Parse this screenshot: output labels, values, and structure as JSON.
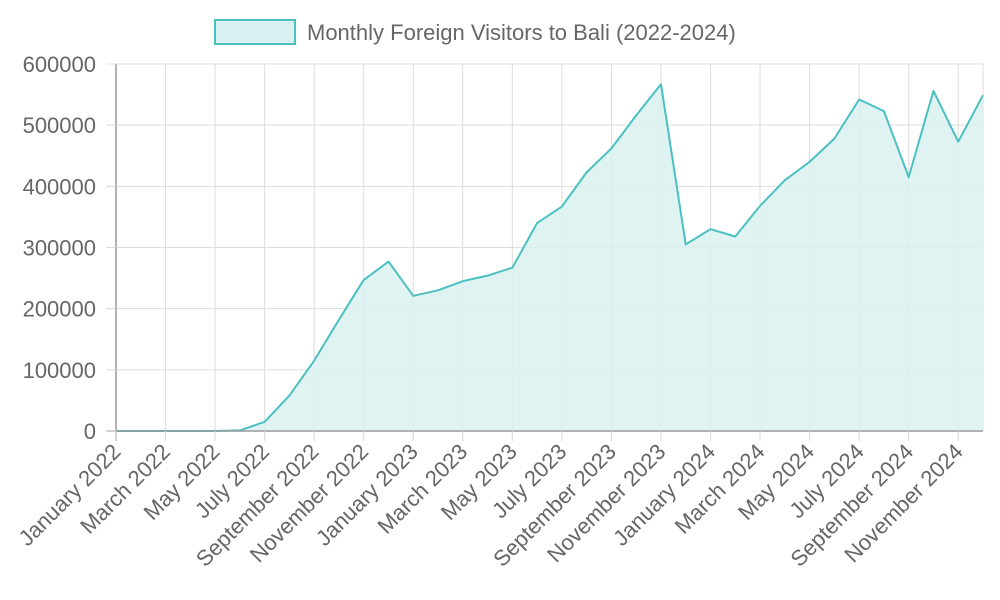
{
  "chart_data": {
    "type": "area",
    "legend": {
      "label": "Monthly Foreign Visitors to Bali (2022-2024)",
      "placement": "top-center"
    },
    "x": [
      "January 2022",
      "February 2022",
      "March 2022",
      "April 2022",
      "May 2022",
      "June 2022",
      "July 2022",
      "August 2022",
      "September 2022",
      "October 2022",
      "November 2022",
      "December 2022",
      "January 2023",
      "February 2023",
      "March 2023",
      "April 2023",
      "May 2023",
      "June 2023",
      "July 2023",
      "August 2023",
      "September 2023",
      "October 2023",
      "November 2023",
      "December 2023",
      "January 2024",
      "February 2024",
      "March 2024",
      "April 2024",
      "May 2024",
      "June 2024",
      "July 2024",
      "August 2024",
      "September 2024",
      "October 2024",
      "November 2024",
      "December 2024"
    ],
    "x_tick_labels": [
      "January 2022",
      "March 2022",
      "May 2022",
      "July 2022",
      "September 2022",
      "November 2022",
      "January 2023",
      "March 2023",
      "May 2023",
      "July 2023",
      "September 2023",
      "November 2023",
      "January 2024",
      "March 2024",
      "May 2024",
      "July 2024",
      "September 2024",
      "November 2024"
    ],
    "series": [
      {
        "name": "Monthly Foreign Visitors to Bali (2022-2024)",
        "values": [
          10,
          10,
          10,
          10,
          10,
          1000,
          15000,
          58000,
          115000,
          182000,
          247000,
          277000,
          221000,
          230000,
          245000,
          254000,
          267000,
          340000,
          367000,
          423000,
          462000,
          516000,
          567000,
          305000,
          330000,
          318000,
          368000,
          410000,
          440000,
          478000,
          542000,
          523000,
          415000,
          556000,
          473000,
          549000
        ]
      }
    ],
    "y_ticks": [
      "0",
      "100000",
      "200000",
      "300000",
      "400000",
      "500000",
      "600000"
    ],
    "ylim": [
      0,
      600000
    ],
    "grid": true,
    "colors": {
      "line": "#4bc0c0",
      "fill": "#daf1f1",
      "grid": "#dddddd",
      "axis": "#999999",
      "text": "#666666"
    }
  }
}
